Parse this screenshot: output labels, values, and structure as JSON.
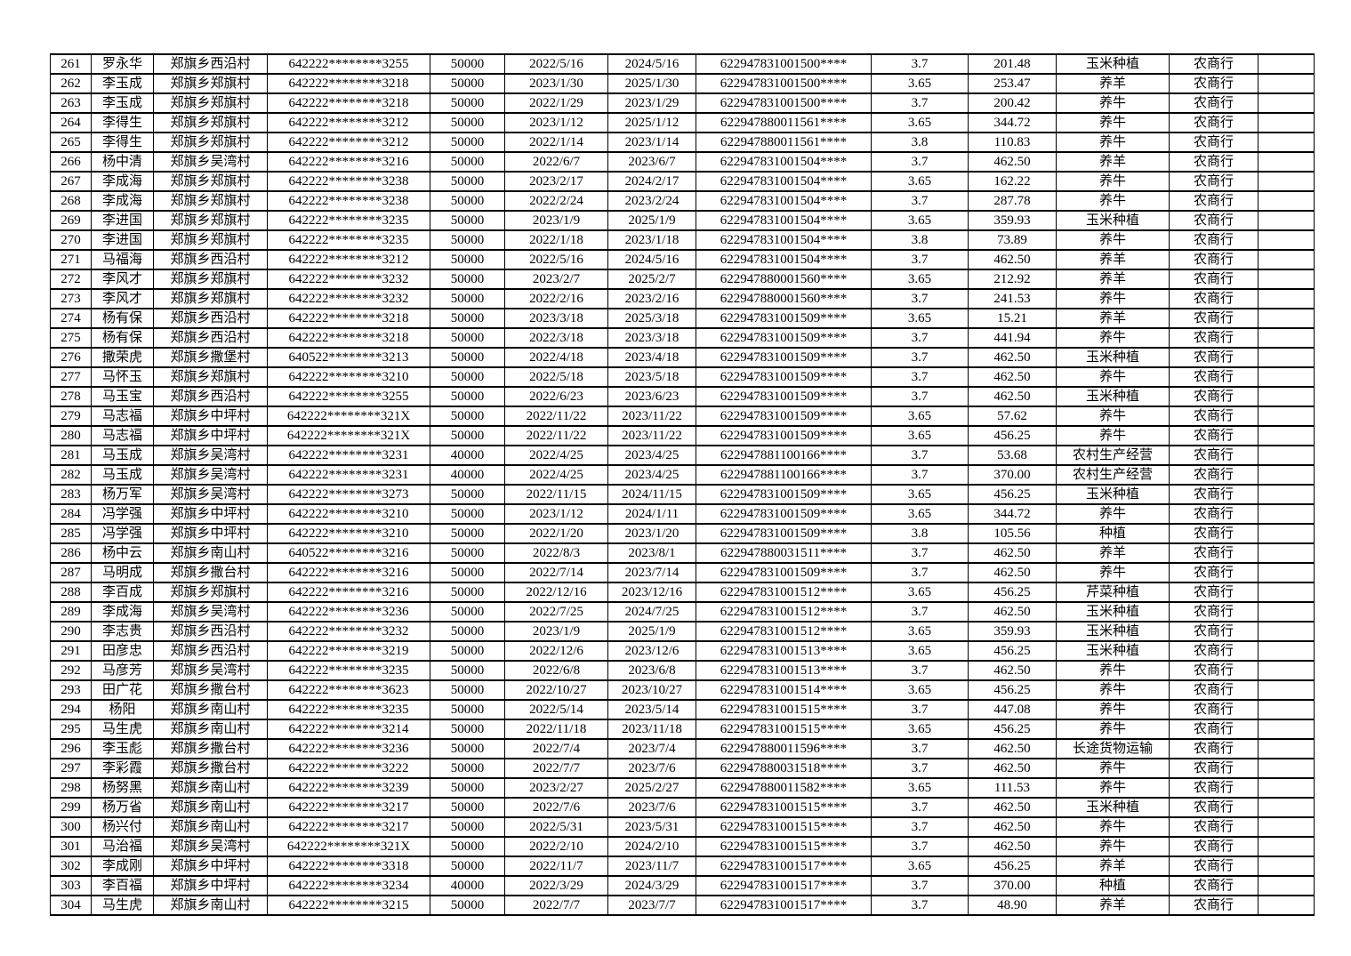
{
  "table": {
    "columns": [
      "seq",
      "name",
      "village",
      "id_number",
      "amount",
      "start_date",
      "end_date",
      "account",
      "rate",
      "interest",
      "purpose",
      "bank",
      "extra"
    ],
    "bank_name": "农商行",
    "rows": [
      [
        "261",
        "罗永华",
        "郑旗乡西沿村",
        "642222********3255",
        "50000",
        "2022/5/16",
        "2024/5/16",
        "622947831001500****",
        "3.7",
        "201.48",
        "玉米种植",
        "农商行",
        ""
      ],
      [
        "262",
        "李玉成",
        "郑旗乡郑旗村",
        "642222********3218",
        "50000",
        "2023/1/30",
        "2025/1/30",
        "622947831001500****",
        "3.65",
        "253.47",
        "养羊",
        "农商行",
        ""
      ],
      [
        "263",
        "李玉成",
        "郑旗乡郑旗村",
        "642222********3218",
        "50000",
        "2022/1/29",
        "2023/1/29",
        "622947831001500****",
        "3.7",
        "200.42",
        "养牛",
        "农商行",
        ""
      ],
      [
        "264",
        "李得生",
        "郑旗乡郑旗村",
        "642222********3212",
        "50000",
        "2023/1/12",
        "2025/1/12",
        "622947880011561****",
        "3.65",
        "344.72",
        "养牛",
        "农商行",
        ""
      ],
      [
        "265",
        "李得生",
        "郑旗乡郑旗村",
        "642222********3212",
        "50000",
        "2022/1/14",
        "2023/1/14",
        "622947880011561****",
        "3.8",
        "110.83",
        "养牛",
        "农商行",
        ""
      ],
      [
        "266",
        "杨中清",
        "郑旗乡吴湾村",
        "642222********3216",
        "50000",
        "2022/6/7",
        "2023/6/7",
        "622947831001504****",
        "3.7",
        "462.50",
        "养羊",
        "农商行",
        ""
      ],
      [
        "267",
        "李成海",
        "郑旗乡郑旗村",
        "642222********3238",
        "50000",
        "2023/2/17",
        "2024/2/17",
        "622947831001504****",
        "3.65",
        "162.22",
        "养牛",
        "农商行",
        ""
      ],
      [
        "268",
        "李成海",
        "郑旗乡郑旗村",
        "642222********3238",
        "50000",
        "2022/2/24",
        "2023/2/24",
        "622947831001504****",
        "3.7",
        "287.78",
        "养牛",
        "农商行",
        ""
      ],
      [
        "269",
        "李进国",
        "郑旗乡郑旗村",
        "642222********3235",
        "50000",
        "2023/1/9",
        "2025/1/9",
        "622947831001504****",
        "3.65",
        "359.93",
        "玉米种植",
        "农商行",
        ""
      ],
      [
        "270",
        "李进国",
        "郑旗乡郑旗村",
        "642222********3235",
        "50000",
        "2022/1/18",
        "2023/1/18",
        "622947831001504****",
        "3.8",
        "73.89",
        "养牛",
        "农商行",
        ""
      ],
      [
        "271",
        "马福海",
        "郑旗乡西沿村",
        "642222********3212",
        "50000",
        "2022/5/16",
        "2024/5/16",
        "622947831001504****",
        "3.7",
        "462.50",
        "养羊",
        "农商行",
        ""
      ],
      [
        "272",
        "李风才",
        "郑旗乡郑旗村",
        "642222********3232",
        "50000",
        "2023/2/7",
        "2025/2/7",
        "622947880001560****",
        "3.65",
        "212.92",
        "养羊",
        "农商行",
        ""
      ],
      [
        "273",
        "李风才",
        "郑旗乡郑旗村",
        "642222********3232",
        "50000",
        "2022/2/16",
        "2023/2/16",
        "622947880001560****",
        "3.7",
        "241.53",
        "养牛",
        "农商行",
        ""
      ],
      [
        "274",
        "杨有保",
        "郑旗乡西沿村",
        "642222********3218",
        "50000",
        "2023/3/18",
        "2025/3/18",
        "622947831001509****",
        "3.65",
        "15.21",
        "养羊",
        "农商行",
        ""
      ],
      [
        "275",
        "杨有保",
        "郑旗乡西沿村",
        "642222********3218",
        "50000",
        "2022/3/18",
        "2023/3/18",
        "622947831001509****",
        "3.7",
        "441.94",
        "养牛",
        "农商行",
        ""
      ],
      [
        "276",
        "撒荣虎",
        "郑旗乡撒堡村",
        "640522********3213",
        "50000",
        "2022/4/18",
        "2023/4/18",
        "622947831001509****",
        "3.7",
        "462.50",
        "玉米种植",
        "农商行",
        ""
      ],
      [
        "277",
        "马怀玉",
        "郑旗乡郑旗村",
        "642222********3210",
        "50000",
        "2022/5/18",
        "2023/5/18",
        "622947831001509****",
        "3.7",
        "462.50",
        "养牛",
        "农商行",
        ""
      ],
      [
        "278",
        "马玉宝",
        "郑旗乡西沿村",
        "642222********3255",
        "50000",
        "2022/6/23",
        "2023/6/23",
        "622947831001509****",
        "3.7",
        "462.50",
        "玉米种植",
        "农商行",
        ""
      ],
      [
        "279",
        "马志福",
        "郑旗乡中坪村",
        "642222********321X",
        "50000",
        "2022/11/22",
        "2023/11/22",
        "622947831001509****",
        "3.65",
        "57.62",
        "养牛",
        "农商行",
        ""
      ],
      [
        "280",
        "马志福",
        "郑旗乡中坪村",
        "642222********321X",
        "50000",
        "2022/11/22",
        "2023/11/22",
        "622947831001509****",
        "3.65",
        "456.25",
        "养牛",
        "农商行",
        ""
      ],
      [
        "281",
        "马玉成",
        "郑旗乡吴湾村",
        "642222********3231",
        "40000",
        "2022/4/25",
        "2023/4/25",
        "622947881100166****",
        "3.7",
        "53.68",
        "农村生产经营",
        "农商行",
        ""
      ],
      [
        "282",
        "马玉成",
        "郑旗乡吴湾村",
        "642222********3231",
        "40000",
        "2022/4/25",
        "2023/4/25",
        "622947881100166****",
        "3.7",
        "370.00",
        "农村生产经营",
        "农商行",
        ""
      ],
      [
        "283",
        "杨万军",
        "郑旗乡吴湾村",
        "642222********3273",
        "50000",
        "2022/11/15",
        "2024/11/15",
        "622947831001509****",
        "3.65",
        "456.25",
        "玉米种植",
        "农商行",
        ""
      ],
      [
        "284",
        "冯学强",
        "郑旗乡中坪村",
        "642222********3210",
        "50000",
        "2023/1/12",
        "2024/1/11",
        "622947831001509****",
        "3.65",
        "344.72",
        "养牛",
        "农商行",
        ""
      ],
      [
        "285",
        "冯学强",
        "郑旗乡中坪村",
        "642222********3210",
        "50000",
        "2022/1/20",
        "2023/1/20",
        "622947831001509****",
        "3.8",
        "105.56",
        "种植",
        "农商行",
        ""
      ],
      [
        "286",
        "杨中云",
        "郑旗乡南山村",
        "640522********3216",
        "50000",
        "2022/8/3",
        "2023/8/1",
        "622947880031511****",
        "3.7",
        "462.50",
        "养羊",
        "农商行",
        ""
      ],
      [
        "287",
        "马明成",
        "郑旗乡撒台村",
        "642222********3216",
        "50000",
        "2022/7/14",
        "2023/7/14",
        "622947831001509****",
        "3.7",
        "462.50",
        "养牛",
        "农商行",
        ""
      ],
      [
        "288",
        "李百成",
        "郑旗乡郑旗村",
        "642222********3216",
        "50000",
        "2022/12/16",
        "2023/12/16",
        "622947831001512****",
        "3.65",
        "456.25",
        "芹菜种植",
        "农商行",
        ""
      ],
      [
        "289",
        "李成海",
        "郑旗乡吴湾村",
        "642222********3236",
        "50000",
        "2022/7/25",
        "2024/7/25",
        "622947831001512****",
        "3.7",
        "462.50",
        "玉米种植",
        "农商行",
        ""
      ],
      [
        "290",
        "李志贵",
        "郑旗乡西沿村",
        "642222********3232",
        "50000",
        "2023/1/9",
        "2025/1/9",
        "622947831001512****",
        "3.65",
        "359.93",
        "玉米种植",
        "农商行",
        ""
      ],
      [
        "291",
        "田彦忠",
        "郑旗乡西沿村",
        "642222********3219",
        "50000",
        "2022/12/6",
        "2023/12/6",
        "622947831001513****",
        "3.65",
        "456.25",
        "玉米种植",
        "农商行",
        ""
      ],
      [
        "292",
        "马彦芳",
        "郑旗乡吴湾村",
        "642222********3235",
        "50000",
        "2022/6/8",
        "2023/6/8",
        "622947831001513****",
        "3.7",
        "462.50",
        "养牛",
        "农商行",
        ""
      ],
      [
        "293",
        "田广花",
        "郑旗乡撒台村",
        "642222********3623",
        "50000",
        "2022/10/27",
        "2023/10/27",
        "622947831001514****",
        "3.65",
        "456.25",
        "养牛",
        "农商行",
        ""
      ],
      [
        "294",
        "杨阳",
        "郑旗乡南山村",
        "642222********3235",
        "50000",
        "2022/5/14",
        "2023/5/14",
        "622947831001515****",
        "3.7",
        "447.08",
        "养牛",
        "农商行",
        ""
      ],
      [
        "295",
        "马生虎",
        "郑旗乡南山村",
        "642222********3214",
        "50000",
        "2022/11/18",
        "2023/11/18",
        "622947831001515****",
        "3.65",
        "456.25",
        "养牛",
        "农商行",
        ""
      ],
      [
        "296",
        "李玉彪",
        "郑旗乡撒台村",
        "642222********3236",
        "50000",
        "2022/7/4",
        "2023/7/4",
        "622947880011596****",
        "3.7",
        "462.50",
        "长途货物运输",
        "农商行",
        ""
      ],
      [
        "297",
        "李彩霞",
        "郑旗乡撒台村",
        "642222********3222",
        "50000",
        "2022/7/7",
        "2023/7/6",
        "622947880031518****",
        "3.7",
        "462.50",
        "养牛",
        "农商行",
        ""
      ],
      [
        "298",
        "杨努黑",
        "郑旗乡南山村",
        "642222********3239",
        "50000",
        "2023/2/27",
        "2025/2/27",
        "622947880011582****",
        "3.65",
        "111.53",
        "养牛",
        "农商行",
        ""
      ],
      [
        "299",
        "杨万省",
        "郑旗乡南山村",
        "642222********3217",
        "50000",
        "2022/7/6",
        "2023/7/6",
        "622947831001515****",
        "3.7",
        "462.50",
        "玉米种植",
        "农商行",
        ""
      ],
      [
        "300",
        "杨兴付",
        "郑旗乡南山村",
        "642222********3217",
        "50000",
        "2022/5/31",
        "2023/5/31",
        "622947831001515****",
        "3.7",
        "462.50",
        "养牛",
        "农商行",
        ""
      ],
      [
        "301",
        "马治福",
        "郑旗乡吴湾村",
        "642222********321X",
        "50000",
        "2022/2/10",
        "2024/2/10",
        "622947831001515****",
        "3.7",
        "462.50",
        "养牛",
        "农商行",
        ""
      ],
      [
        "302",
        "李成刚",
        "郑旗乡中坪村",
        "642222********3318",
        "50000",
        "2022/11/7",
        "2023/11/7",
        "622947831001517****",
        "3.65",
        "456.25",
        "养羊",
        "农商行",
        ""
      ],
      [
        "303",
        "李百福",
        "郑旗乡中坪村",
        "642222********3234",
        "40000",
        "2022/3/29",
        "2024/3/29",
        "622947831001517****",
        "3.7",
        "370.00",
        "种植",
        "农商行",
        ""
      ],
      [
        "304",
        "马生虎",
        "郑旗乡南山村",
        "642222********3215",
        "50000",
        "2022/7/7",
        "2023/7/7",
        "622947831001517****",
        "3.7",
        "48.90",
        "养羊",
        "农商行",
        ""
      ]
    ]
  }
}
